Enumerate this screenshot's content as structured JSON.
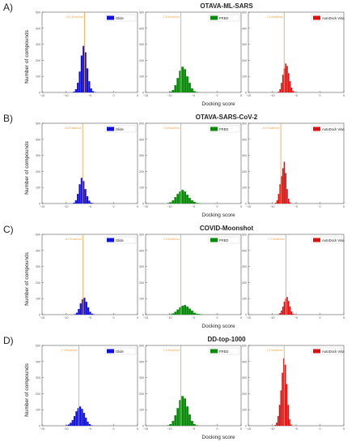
{
  "chart_data": [
    {
      "panel_label": "A)",
      "title": "OTAVA-ML-SARS",
      "ylabel": "Number of compounds",
      "xlabel": "Docking score",
      "charts": [
        {
          "type": "bar",
          "series": "Glide",
          "color": "#1010e0",
          "cutoff_label": "-6.1 Kcal/mol",
          "cutoff": -6.1,
          "bins": [
            -8.5,
            -8.1,
            -7.7,
            -7.3,
            -6.9,
            -6.5,
            -6.1,
            -5.7,
            -5.3,
            -4.9,
            -4.5,
            -4.1
          ],
          "counts": [
            5,
            20,
            60,
            130,
            230,
            290,
            250,
            150,
            70,
            25,
            8,
            2
          ]
        },
        {
          "type": "bar",
          "series": "FRED",
          "color": "#0a8a0a",
          "cutoff_label": "-7.6 Kcal/mol",
          "cutoff": -7.6,
          "bins": [
            -10,
            -9.5,
            -9,
            -8.5,
            -8,
            -7.5,
            -7,
            -6.5,
            -6,
            -5.5,
            -5,
            -4.5
          ],
          "counts": [
            5,
            15,
            45,
            90,
            135,
            160,
            145,
            100,
            60,
            25,
            8,
            3
          ]
        },
        {
          "type": "bar",
          "series": "AutoDock Vina",
          "color": "#e01010",
          "cutoff_label": "-7.5 Kcal/mol",
          "cutoff": -7.5,
          "bins": [
            -8.8,
            -8.5,
            -8.2,
            -7.9,
            -7.6,
            -7.3,
            -7,
            -6.7,
            -6.4,
            -6.1,
            -5.8,
            -5.5
          ],
          "counts": [
            5,
            20,
            60,
            110,
            150,
            180,
            165,
            120,
            70,
            30,
            10,
            3
          ]
        }
      ],
      "ylim": [
        0,
        500
      ],
      "yticks": [
        0,
        100,
        200,
        300,
        400,
        500
      ]
    },
    {
      "panel_label": "B)",
      "title": "OTAVA-SARS-CoV-2",
      "ylabel": "Number of compounds",
      "xlabel": "Docking score",
      "charts": [
        {
          "type": "bar",
          "series": "Glide",
          "color": "#1010e0",
          "cutoff_label": "-6.5 Kcal/mol",
          "cutoff": -6.5,
          "bins": [
            -8.5,
            -8.1,
            -7.7,
            -7.3,
            -6.9,
            -6.5,
            -6.1,
            -5.7,
            -5.3,
            -4.9,
            -4.5
          ],
          "counts": [
            5,
            20,
            60,
            120,
            160,
            140,
            90,
            45,
            18,
            5,
            2
          ]
        },
        {
          "type": "bar",
          "series": "FRED",
          "color": "#0a8a0a",
          "cutoff_label": "-7.6 Kcal/mol",
          "cutoff": -7.6,
          "bins": [
            -10.5,
            -10,
            -9.5,
            -9,
            -8.5,
            -8,
            -7.5,
            -7,
            -6.5,
            -6,
            -5.5,
            -5,
            -4.5,
            -4
          ],
          "counts": [
            3,
            8,
            20,
            40,
            60,
            75,
            85,
            75,
            55,
            35,
            20,
            10,
            4,
            2
          ]
        },
        {
          "type": "bar",
          "series": "AutoDock Vina",
          "color": "#e01010",
          "cutoff_label": "-8.2 Kcal/mol",
          "cutoff": -8.2,
          "bins": [
            -9.4,
            -9.1,
            -8.8,
            -8.5,
            -8.2,
            -7.9,
            -7.6,
            -7.3,
            -7,
            -6.7,
            -6.4
          ],
          "counts": [
            5,
            20,
            60,
            120,
            170,
            220,
            260,
            190,
            90,
            30,
            8
          ]
        }
      ],
      "ylim": [
        0,
        500
      ],
      "yticks": [
        0,
        100,
        200,
        300,
        400,
        500
      ]
    },
    {
      "panel_label": "C)",
      "title": "COVID-Moonshot",
      "ylabel": "Number of compounds",
      "xlabel": "Docking score",
      "charts": [
        {
          "type": "bar",
          "series": "Glide",
          "color": "#1010e0",
          "cutoff_label": "-6.4 Kcal/mol",
          "cutoff": -6.4,
          "bins": [
            -8.3,
            -7.9,
            -7.5,
            -7.1,
            -6.7,
            -6.3,
            -5.9,
            -5.5,
            -5.1,
            -4.7,
            -4.3
          ],
          "counts": [
            3,
            12,
            35,
            70,
            95,
            105,
            80,
            45,
            18,
            6,
            2
          ]
        },
        {
          "type": "bar",
          "series": "FRED",
          "color": "#0a8a0a",
          "cutoff_label": "-7.6 Kcal/mol",
          "cutoff": -7.6,
          "bins": [
            -10,
            -9.5,
            -9,
            -8.5,
            -8,
            -7.5,
            -7,
            -6.5,
            -6,
            -5.5,
            -5,
            -4.5,
            -4,
            -3.5
          ],
          "counts": [
            3,
            8,
            18,
            32,
            45,
            55,
            60,
            50,
            38,
            25,
            12,
            6,
            4,
            2
          ]
        },
        {
          "type": "bar",
          "series": "AutoDock Vina",
          "color": "#e01010",
          "cutoff_label": "-7.1 Kcal/mol",
          "cutoff": -7.1,
          "bins": [
            -8.8,
            -8.5,
            -8.2,
            -7.9,
            -7.6,
            -7.3,
            -7,
            -6.7,
            -6.4,
            -6.1,
            -5.8,
            -5.5
          ],
          "counts": [
            3,
            10,
            25,
            50,
            80,
            100,
            110,
            85,
            50,
            20,
            6,
            2
          ]
        }
      ],
      "ylim": [
        0,
        500
      ],
      "yticks": [
        0,
        100,
        200,
        300,
        400,
        500
      ]
    },
    {
      "panel_label": "D)",
      "title": "DD-top-1000",
      "ylabel": "Number of compounds",
      "xlabel": "Docking score",
      "charts": [
        {
          "type": "bar",
          "series": "Glide",
          "color": "#1010e0",
          "cutoff_label": "-7.3 Kcal/mol",
          "cutoff": -7.3,
          "bins": [
            -10,
            -9.6,
            -9.2,
            -8.8,
            -8.4,
            -8,
            -7.6,
            -7.2,
            -6.8,
            -6.4,
            -6,
            -5.6,
            -5.2,
            -4.8
          ],
          "counts": [
            3,
            8,
            18,
            35,
            60,
            90,
            110,
            120,
            105,
            80,
            50,
            25,
            10,
            3
          ]
        },
        {
          "type": "bar",
          "series": "FRED",
          "color": "#0a8a0a",
          "cutoff_label": "-7.6 Kcal/mol",
          "cutoff": -7.6,
          "bins": [
            -10.5,
            -10,
            -9.5,
            -9,
            -8.5,
            -8,
            -7.5,
            -7,
            -6.5,
            -6,
            -5.5,
            -5,
            -4.5
          ],
          "counts": [
            3,
            10,
            30,
            65,
            110,
            160,
            185,
            170,
            120,
            70,
            30,
            10,
            3
          ]
        },
        {
          "type": "bar",
          "series": "AutoDock Vina",
          "color": "#e01010",
          "cutoff_label": "-7.5 Kcal/mol",
          "cutoff": -7.5,
          "bins": [
            -9.5,
            -9.2,
            -8.9,
            -8.6,
            -8.3,
            -8,
            -7.7,
            -7.4,
            -7.1,
            -6.8,
            -6.5,
            -6.2
          ],
          "counts": [
            5,
            20,
            60,
            130,
            220,
            330,
            420,
            380,
            260,
            130,
            40,
            8
          ]
        }
      ],
      "ylim": [
        0,
        500
      ],
      "yticks": [
        0,
        100,
        200,
        300,
        400,
        500
      ]
    }
  ],
  "xlim": [
    -15,
    5
  ],
  "xticks": [
    -15,
    -10,
    -5,
    0,
    5
  ],
  "xtick_labels": [
    "−15",
    "−10",
    "−5",
    "0",
    "5"
  ],
  "colors": {
    "cutoff_line": "#f0a040",
    "axis": "#555555"
  }
}
